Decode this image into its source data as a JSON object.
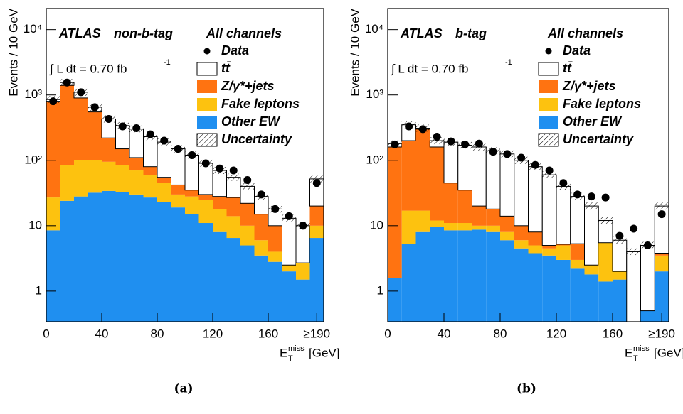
{
  "chart_data": [
    {
      "type": "stacked_histogram",
      "experiment": "ATLAS",
      "selection": "non-b-tag",
      "channel": "All channels",
      "lumi": "∫ L dt = 0.70 fb",
      "lumi_exponent": "-1",
      "y_label": "Events / 10 GeV",
      "x_label": {
        "base": "E",
        "sub": "T",
        "sup": "miss",
        "unit": "[GeV]"
      },
      "caption": "(a)",
      "log_y": true,
      "bins": [
        0,
        10,
        20,
        30,
        40,
        50,
        60,
        70,
        80,
        90,
        100,
        110,
        120,
        130,
        140,
        150,
        160,
        170,
        180,
        190,
        200
      ],
      "xlim": [
        0,
        200
      ],
      "xticks": [
        0,
        40,
        80,
        120,
        160,
        {
          "value": 195,
          "label": "≥190"
        }
      ],
      "ylim": [
        0.34,
        21000
      ],
      "yticks": [
        1,
        10,
        {
          "value": 100,
          "label": "10²"
        },
        {
          "value": 1000,
          "label": "10³"
        },
        {
          "value": 10000,
          "label": "10⁴"
        }
      ],
      "series": [
        {
          "name": "Other EW",
          "color": "#1f8ff0",
          "values": [
            8.5,
            24,
            28,
            32,
            34,
            33,
            30,
            27,
            23,
            19,
            15,
            11,
            8,
            6.5,
            5,
            3.5,
            2.8,
            2.0,
            1.5,
            6.5
          ]
        },
        {
          "name": "Fake leptons",
          "color": "#fdc20f",
          "values": [
            18.5,
            61,
            72,
            68,
            61,
            52,
            40,
            33,
            22,
            11,
            13,
            14,
            10,
            7.5,
            5,
            2.5,
            1.2,
            0.5,
            1.2,
            3.5
          ]
        },
        {
          "name": "Z/γ*+jets",
          "color": "#ff7311",
          "values": [
            773,
            1315,
            800,
            450,
            125,
            65,
            40,
            20,
            10,
            12,
            7,
            5,
            10,
            13,
            12,
            9,
            6,
            0,
            0,
            10
          ]
        },
        {
          "name": "tt̄",
          "color": "#ffffff",
          "values": [
            50,
            150,
            200,
            100,
            210,
            190,
            190,
            150,
            135,
            108,
            85,
            60,
            42,
            28,
            18,
            13,
            8,
            10.5,
            7.3,
            32
          ]
        }
      ],
      "data": {
        "name": "Data",
        "values": [
          800,
          1550,
          1100,
          650,
          430,
          330,
          310,
          250,
          200,
          150,
          120,
          90,
          75,
          70,
          50,
          30,
          18,
          14,
          10,
          45
        ]
      },
      "uncertainty_label": "Uncertainty"
    },
    {
      "type": "stacked_histogram",
      "experiment": "ATLAS",
      "selection": "b-tag",
      "channel": "All channels",
      "lumi": "∫ L dt = 0.70 fb",
      "lumi_exponent": "-1",
      "y_label": "Events / 10 GeV",
      "x_label": {
        "base": "E",
        "sub": "T",
        "sup": "miss",
        "unit": "[GeV]"
      },
      "caption": "(b)",
      "log_y": true,
      "bins": [
        0,
        10,
        20,
        30,
        40,
        50,
        60,
        70,
        80,
        90,
        100,
        110,
        120,
        130,
        140,
        150,
        160,
        170,
        180,
        190,
        200
      ],
      "xlim": [
        0,
        200
      ],
      "xticks": [
        0,
        40,
        80,
        120,
        160,
        {
          "value": 195,
          "label": "≥190"
        }
      ],
      "ylim": [
        0.34,
        21000
      ],
      "yticks": [
        1,
        10,
        {
          "value": 100,
          "label": "10²"
        },
        {
          "value": 1000,
          "label": "10³"
        },
        {
          "value": 10000,
          "label": "10⁴"
        }
      ],
      "series": [
        {
          "name": "Other EW",
          "color": "#1f8ff0",
          "values": [
            1.6,
            5.3,
            8,
            9.5,
            8.5,
            8.5,
            8.7,
            8,
            6,
            4.5,
            3.8,
            3.5,
            3,
            2.2,
            1.8,
            1.4,
            1.5,
            0,
            0.5,
            2
          ]
        },
        {
          "name": "Fake leptons",
          "color": "#fdc20f",
          "values": [
            0,
            11.7,
            9,
            2.5,
            2.5,
            2.5,
            1.3,
            2,
            2,
            1.5,
            1.2,
            1,
            2,
            0.8,
            0.7,
            4.1,
            0.5,
            0,
            0,
            1.5
          ]
        },
        {
          "name": "Z/γ*+jets",
          "color": "#ff7311",
          "values": [
            158.4,
            183,
            283,
            148,
            34,
            24,
            10,
            8,
            6,
            4,
            3,
            0.5,
            0.2,
            2.3,
            0,
            0,
            0,
            0,
            0,
            0.3
          ]
        },
        {
          "name": "tt̄",
          "color": "#ffffff",
          "values": [
            20,
            150,
            10,
            40,
            145,
            135,
            140,
            122,
            111,
            90,
            72,
            55,
            34.8,
            22.7,
            17.5,
            6.5,
            4,
            4,
            4.5,
            16.2
          ]
        }
      ],
      "data": {
        "name": "Data",
        "values": [
          175,
          330,
          300,
          230,
          195,
          175,
          180,
          135,
          125,
          110,
          85,
          70,
          45,
          30,
          28,
          27,
          7,
          9,
          5,
          15
        ]
      },
      "uncertainty_label": "Uncertainty"
    }
  ]
}
